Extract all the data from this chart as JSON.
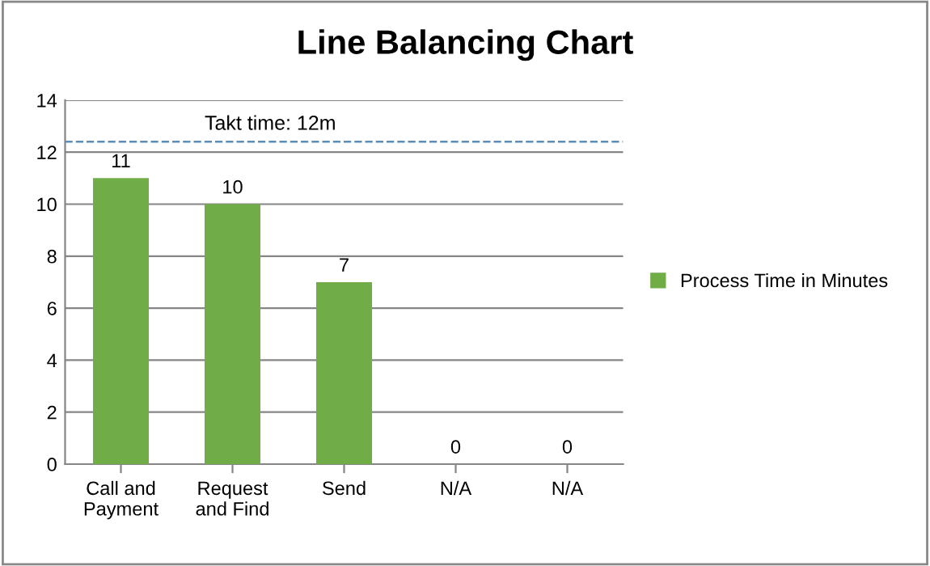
{
  "chart_data": {
    "type": "bar",
    "title": "Line Balancing Chart",
    "categories": [
      "Call and\nPayment",
      "Request\nand Find",
      "Send",
      "N/A",
      "N/A"
    ],
    "series": [
      {
        "name": "Process Time in Minutes",
        "color": "#70ad47",
        "values": [
          11,
          10,
          7,
          0,
          0
        ]
      }
    ],
    "ylim": [
      0,
      14
    ],
    "yticks": [
      0,
      2,
      4,
      6,
      8,
      10,
      12,
      14
    ],
    "grid": "y",
    "legend": "right",
    "data_labels": true,
    "ref_lines": [
      {
        "axis": "y",
        "value": 12.4,
        "label": "Takt time: 12m",
        "color": "#5b8db8",
        "line_style": "dashed"
      }
    ]
  }
}
